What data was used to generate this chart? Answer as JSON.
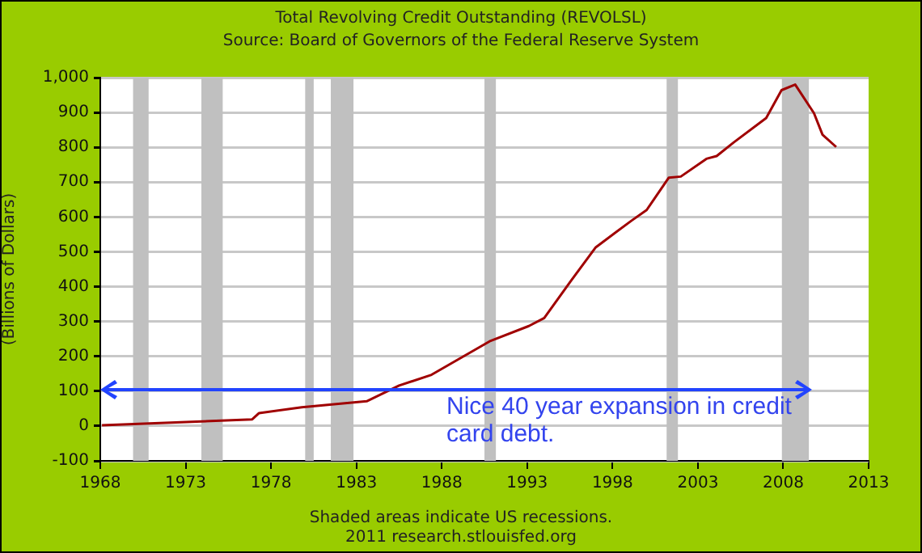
{
  "chart_data": {
    "type": "line",
    "title": "Total Revolving Credit Outstanding (REVOLSL)",
    "subtitle": "Source: Board of Governors of the Federal Reserve System",
    "ylabel": "(Billions of Dollars)",
    "x": [
      1968.1,
      1976.9,
      1977.3,
      1979.8,
      1983.6,
      1985.5,
      1987.4,
      1990.8,
      1993.1,
      1994.0,
      1995.6,
      1997.0,
      1999.1,
      2000.0,
      2001.3,
      2002.0,
      2003.5,
      2004.1,
      2005.1,
      2007.0,
      2007.9,
      2008.7,
      2009.8,
      2010.3,
      2011.1
    ],
    "series": [
      {
        "color": "#a00000",
        "values": [
          2,
          19,
          37,
          54,
          71,
          116,
          147,
          243,
          287,
          310,
          419,
          512,
          589,
          620,
          713,
          716,
          767,
          775,
          814,
          884,
          964,
          980,
          898,
          836,
          801
        ]
      }
    ],
    "xlim": [
      1968,
      2013
    ],
    "xticks": [
      1968,
      1973,
      1978,
      1983,
      1988,
      1993,
      1998,
      2003,
      2008,
      2013
    ],
    "ylim": [
      -100,
      1000
    ],
    "yticks": [
      -100,
      0,
      100,
      200,
      300,
      400,
      500,
      600,
      700,
      800,
      900,
      {
        "value": 1000,
        "label": "1,000"
      }
    ],
    "bands": [
      {
        "axis": "x",
        "from": 1969.92,
        "to": 1970.83,
        "color": "#c0c0c0"
      },
      {
        "axis": "x",
        "from": 1973.92,
        "to": 1975.17,
        "color": "#c0c0c0"
      },
      {
        "axis": "x",
        "from": 1980.0,
        "to": 1980.5,
        "color": "#c0c0c0"
      },
      {
        "axis": "x",
        "from": 1981.5,
        "to": 1982.83,
        "color": "#c0c0c0"
      },
      {
        "axis": "x",
        "from": 1990.5,
        "to": 1991.17,
        "color": "#c0c0c0"
      },
      {
        "axis": "x",
        "from": 2001.17,
        "to": 2001.83,
        "color": "#c0c0c0"
      },
      {
        "axis": "x",
        "from": 2007.92,
        "to": 2009.5,
        "color": "#c0c0c0"
      }
    ],
    "annotations": [
      "Nice 40 year expansion in credit card debt.",
      "Shaded areas indicate US recessions.",
      "2011 research.stlouisfed.org"
    ],
    "grid": "y",
    "legend": false,
    "marker": "none",
    "line_style": "solid"
  }
}
